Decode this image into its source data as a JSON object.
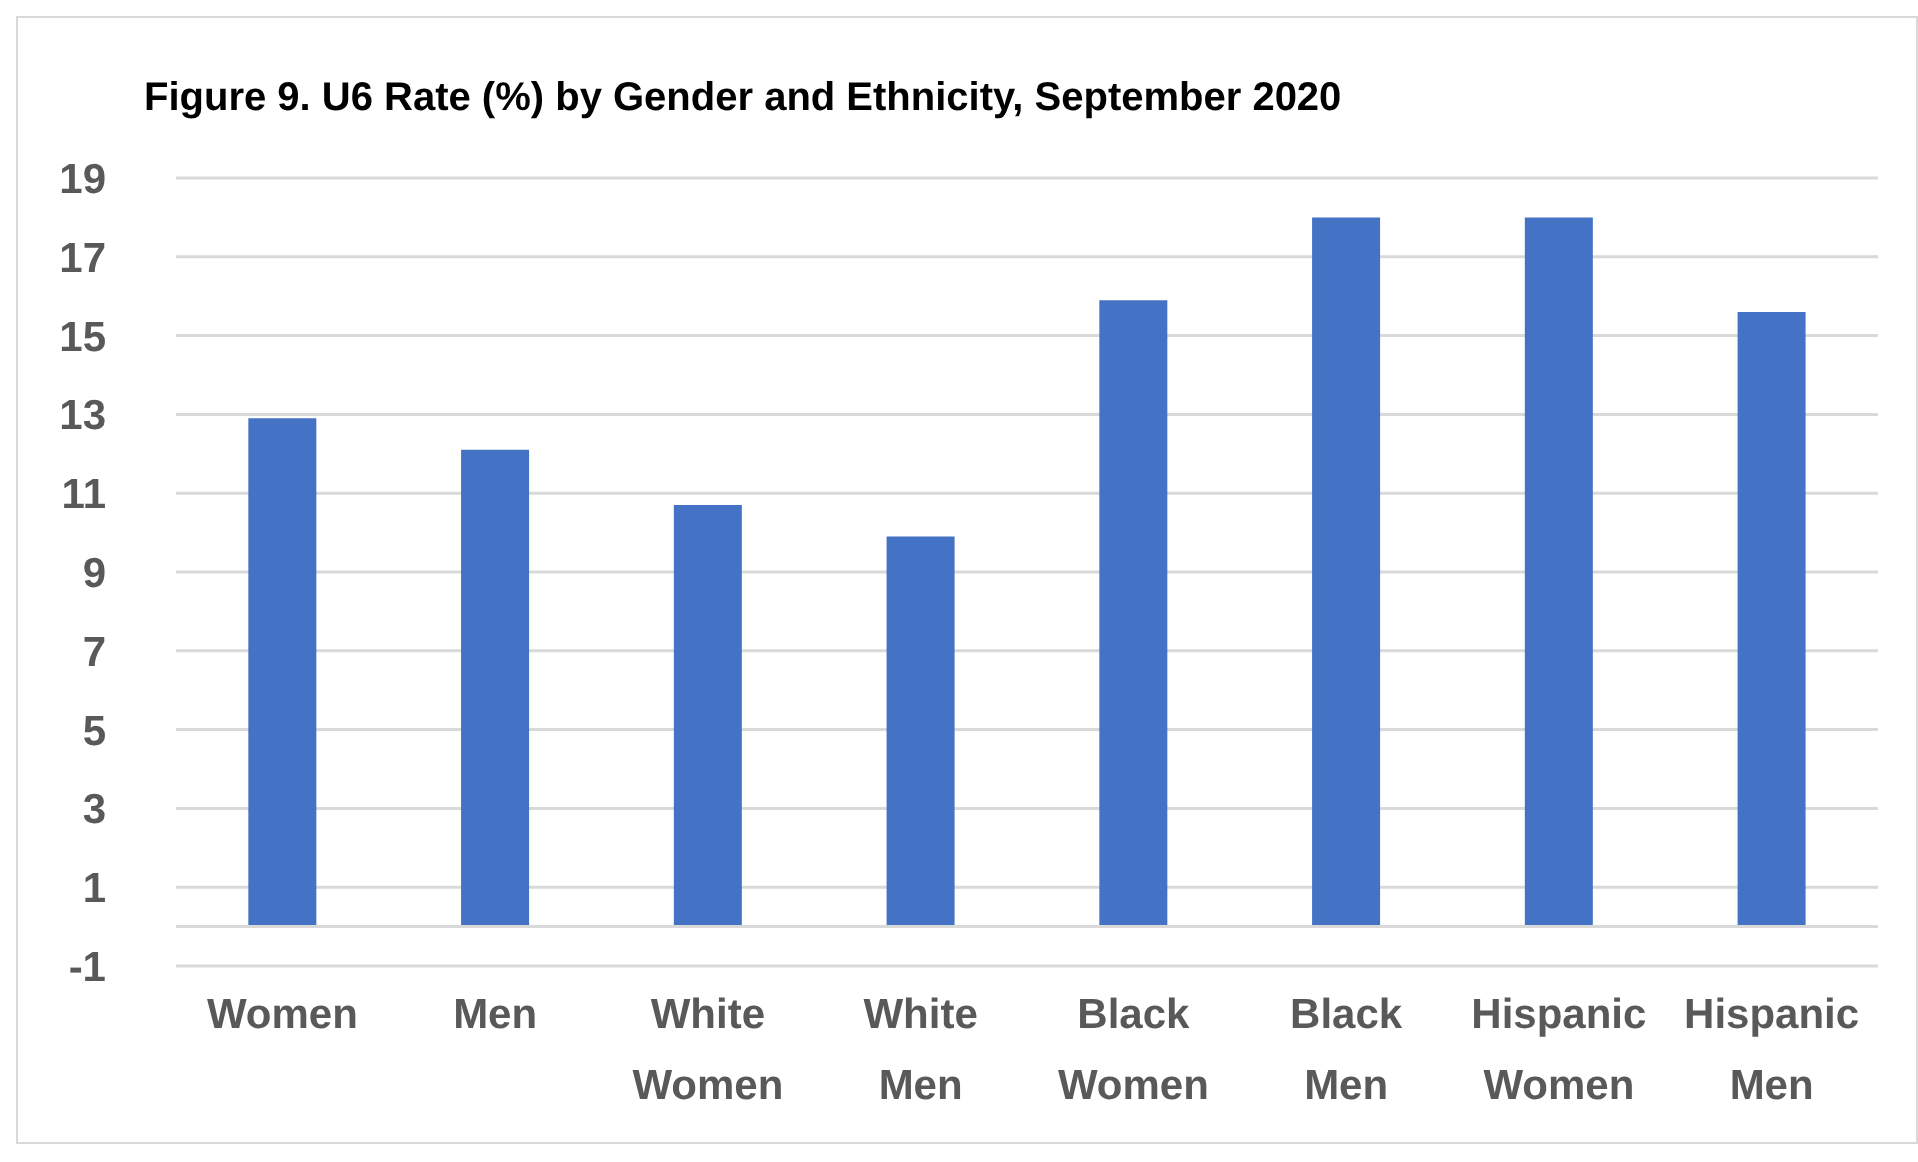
{
  "chart_data": {
    "type": "bar",
    "title": "Figure 9. U6 Rate (%) by Gender and Ethnicity, September 2020",
    "categories": [
      "Women",
      "Men",
      "White Women",
      "White Men",
      "Black Women",
      "Black Men",
      "Hispanic Women",
      "Hispanic Men"
    ],
    "values": [
      12.9,
      12.1,
      10.7,
      9.9,
      15.9,
      18.0,
      18.0,
      15.6
    ],
    "color": "#4472c4",
    "ylim": [
      -1,
      19
    ],
    "yticks": [
      -1,
      1,
      3,
      5,
      7,
      9,
      11,
      13,
      15,
      17,
      19
    ],
    "grid": "y"
  }
}
